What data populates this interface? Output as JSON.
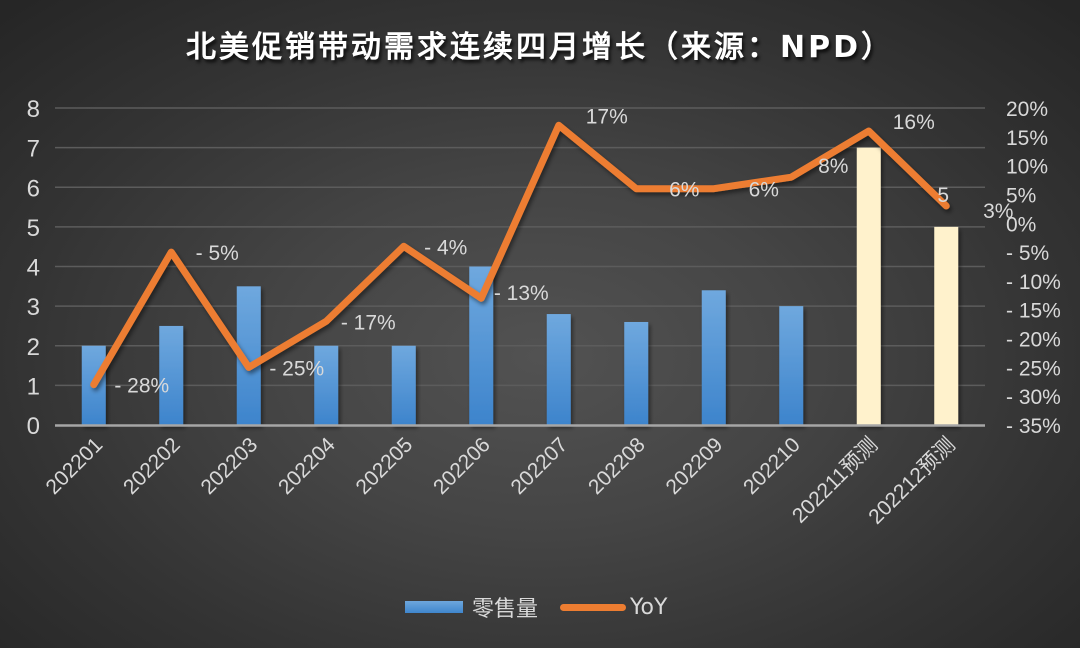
{
  "chart_data": {
    "type": "bar+line",
    "title": "北美促销带动需求连续四月增长（来源：NPD）",
    "categories": [
      "202201",
      "202202",
      "202203",
      "202204",
      "202205",
      "202206",
      "202207",
      "202208",
      "202209",
      "202210",
      "202211预测",
      "202212预测"
    ],
    "series": [
      {
        "name": "零售量",
        "type": "bar",
        "axis": "left",
        "values": [
          2.0,
          2.5,
          3.5,
          2.0,
          2.0,
          4.0,
          2.8,
          2.6,
          3.4,
          3.0,
          7.0,
          5.0
        ],
        "colors": [
          "#4a8fd4",
          "#4a8fd4",
          "#4a8fd4",
          "#4a8fd4",
          "#4a8fd4",
          "#4a8fd4",
          "#4a8fd4",
          "#4a8fd4",
          "#4a8fd4",
          "#4a8fd4",
          "#fff2cc",
          "#fff2cc"
        ]
      },
      {
        "name": "YoY",
        "type": "line",
        "axis": "right",
        "values": [
          -28,
          -5,
          -25,
          -17,
          -4,
          -13,
          17,
          6,
          6,
          8,
          16,
          3
        ],
        "labels": [
          "-28%",
          "-5%",
          "-25%",
          "-17%",
          "-4%",
          "-13%",
          "17%",
          "6%",
          "6%",
          "8%",
          "16%",
          "3%"
        ],
        "color": "#ed7d31"
      }
    ],
    "extra_annotations": [
      {
        "text": "5",
        "near_category": "202212预测"
      }
    ],
    "left_axis": {
      "min": 0,
      "max": 8,
      "ticks": [
        "0",
        "1",
        "2",
        "3",
        "4",
        "5",
        "6",
        "7",
        "8"
      ]
    },
    "right_axis": {
      "min": -35,
      "max": 20,
      "ticks": [
        "20%",
        "15%",
        "10%",
        "5%",
        "0%",
        "-5%",
        "-10%",
        "-15%",
        "-20%",
        "-25%",
        "-30%",
        "-35%"
      ]
    },
    "xlabel": "",
    "ylabel": "",
    "grid": true,
    "legend_position": "bottom"
  },
  "legend": {
    "bar_label": "零售量",
    "line_label": "YoY"
  }
}
